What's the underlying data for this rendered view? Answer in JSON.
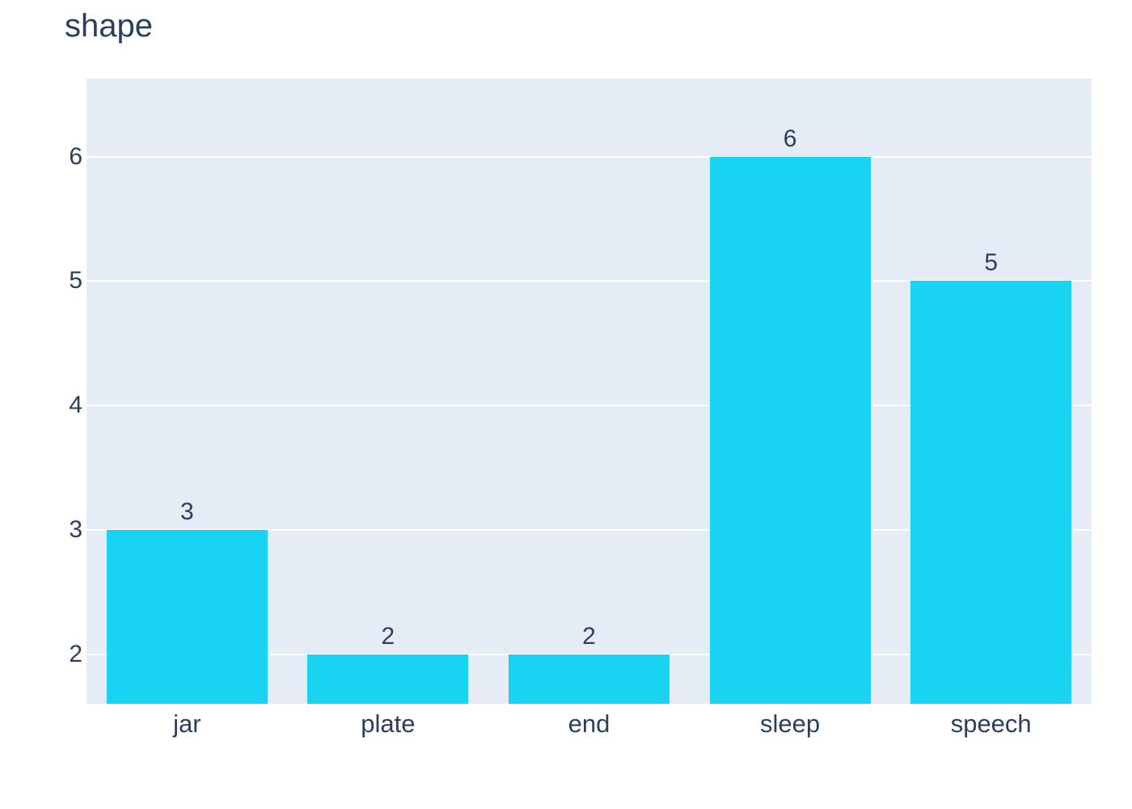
{
  "chart_data": {
    "type": "bar",
    "title": "shape",
    "categories": [
      "jar",
      "plate",
      "end",
      "sleep",
      "speech"
    ],
    "values": [
      3,
      2,
      2,
      6,
      5
    ],
    "value_labels": [
      "3",
      "2",
      "2",
      "6",
      "5"
    ],
    "xlabel": "",
    "ylabel": "",
    "yticks": [
      2,
      3,
      4,
      5,
      6
    ],
    "ytick_labels": [
      "2",
      "3",
      "4",
      "5",
      "6"
    ],
    "ylim": [
      1.6,
      6.63
    ],
    "grid": true,
    "legend_visible": false,
    "colors": {
      "bar": "#19d3f3",
      "plot_background": "#e5ecf6",
      "page_background": "#ffffff",
      "gridline": "#ffffff",
      "text": "#2a3f5f"
    },
    "layout_hints": {
      "bar_width_fraction": 0.8,
      "orientation": "vertical",
      "value_labels_position": "outside-top"
    }
  }
}
